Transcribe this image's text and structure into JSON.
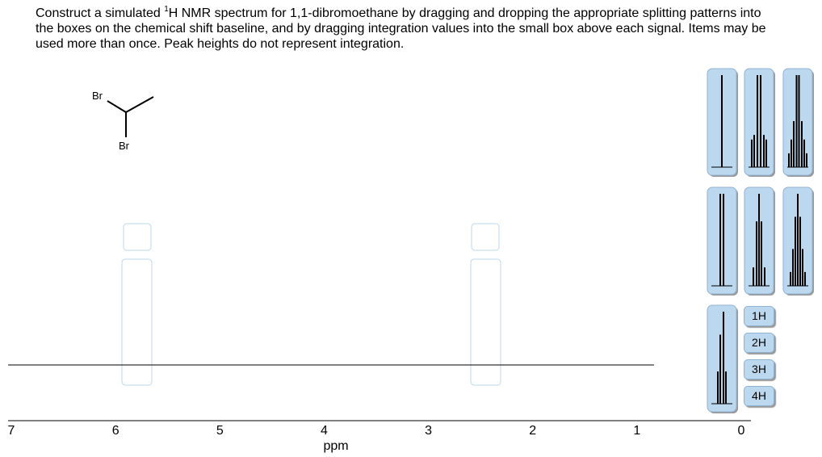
{
  "question": {
    "parts": [
      "Construct a simulated ",
      "1",
      "H NMR spectrum for 1,1-dibromoethane by dragging and dropping the appropriate splitting patterns into the boxes on the chemical shift baseline, and by dragging integration values into the small box above each signal. Items may be used more than once. Peak heights do not represent integration."
    ]
  },
  "molecule": {
    "atoms": [
      "Br",
      "Br"
    ]
  },
  "axis": {
    "ticks": [
      7,
      6,
      5,
      4,
      3,
      2,
      1,
      0
    ],
    "label": "ppm"
  },
  "integrations": [
    "1H",
    "2H",
    "3H",
    "4H"
  ]
}
